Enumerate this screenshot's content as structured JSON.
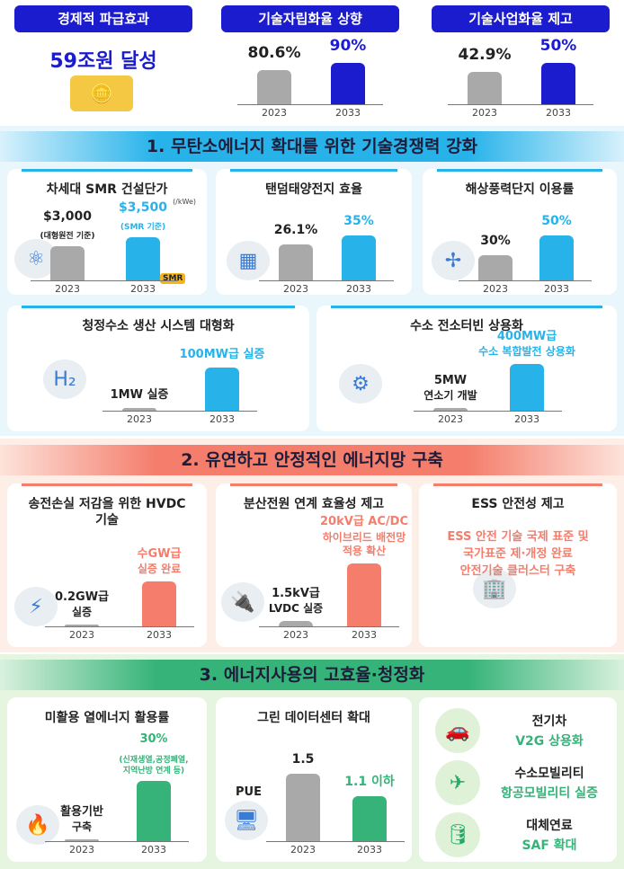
{
  "colors": {
    "top_blue": "#1c1ccf",
    "section1": "#27b3ea",
    "section2": "#f47d6c",
    "section3": "#35b378",
    "gray_bar": "#a9a9a9"
  },
  "top": [
    {
      "title": "경제적 파급효과",
      "headline": "59조원 달성",
      "icon": "gold-coins-icon"
    },
    {
      "title": "기술자립화율 상향",
      "bars": [
        {
          "year": "2023",
          "label": [
            "80.6%"
          ],
          "value": 80.6
        },
        {
          "year": "2033",
          "label": [
            "90%"
          ],
          "value": 90
        }
      ]
    },
    {
      "title": "기술사업화율 제고",
      "bars": [
        {
          "year": "2023",
          "label": [
            "42.9%"
          ],
          "value": 42.9
        },
        {
          "year": "2033",
          "label": [
            "50%"
          ],
          "value": 50
        }
      ]
    }
  ],
  "section1": {
    "title": "1. 무탄소에너지 확대를 위한 기술경쟁력 강화",
    "cards": [
      {
        "title": "차세대 SMR 건설단가",
        "unit": "(/kWe)",
        "icon": "nuclear-plant-icon",
        "badge": "SMR",
        "bars": [
          {
            "year": "2023",
            "label": [
              "$3,000",
              "(대형원전 기준)"
            ],
            "value": 3000
          },
          {
            "year": "2033",
            "label": [
              "$3,500",
              "(SMR 기준)"
            ],
            "value": 3500
          }
        ]
      },
      {
        "title": "탠덤태양전지 효율",
        "icon": "solar-panel-icon",
        "bars": [
          {
            "year": "2023",
            "label": [
              "26.1%"
            ],
            "value": 26.1
          },
          {
            "year": "2033",
            "label": [
              "35%"
            ],
            "value": 35
          }
        ]
      },
      {
        "title": "해상풍력단지 이용률",
        "icon": "wind-turbine-icon",
        "bars": [
          {
            "year": "2023",
            "label": [
              "30%"
            ],
            "value": 30
          },
          {
            "year": "2033",
            "label": [
              "50%"
            ],
            "value": 50
          }
        ]
      },
      {
        "title": "청정수소 생산 시스템 대형화",
        "icon": "hydrogen-tank-icon",
        "bars": [
          {
            "year": "2023",
            "label": [
              "1MW 실증"
            ]
          },
          {
            "year": "2033",
            "label": [
              "100MW급 실증"
            ]
          }
        ]
      },
      {
        "title": "수소 전소터빈 상용화",
        "icon": "turbine-icon",
        "bars": [
          {
            "year": "2023",
            "label": [
              "5MW",
              "연소기 개발"
            ]
          },
          {
            "year": "2033",
            "label": [
              "400MW급",
              "수소 복합발전 상용화"
            ]
          }
        ]
      }
    ]
  },
  "section2": {
    "title": "2. 유연하고 안정적인 에너지망 구축",
    "cards": [
      {
        "title": "송전손실 저감을 위한 HVDC 기술",
        "icon": "lightning-icon",
        "bars": [
          {
            "year": "2023",
            "label": [
              "0.2GW급",
              "실증"
            ]
          },
          {
            "year": "2033",
            "label": [
              "수GW급",
              "실증 완료"
            ]
          }
        ]
      },
      {
        "title": "분산전원 연계 효율성 제고",
        "icon": "plug-leaf-icon",
        "bars": [
          {
            "year": "2023",
            "label": [
              "1.5kV급",
              "LVDC 실증"
            ]
          },
          {
            "year": "2033",
            "label": [
              "20kV급 AC/DC",
              "하이브리드 배전망",
              "적용 확산"
            ]
          }
        ]
      },
      {
        "title": "ESS 안전성 제고",
        "icon": "ess-building-icon",
        "text": [
          "ESS 안전 기술 국제 표준 및",
          "국가표준 제·개정 완료",
          "안전기술 클러스터 구축"
        ]
      }
    ]
  },
  "section3": {
    "title": "3. 에너지사용의 고효율·청정화",
    "cards": [
      {
        "title": "미활용 열에너지 활용률",
        "icon": "heat-plug-icon",
        "bars": [
          {
            "year": "2023",
            "label": [
              "활용기반",
              "구축"
            ]
          },
          {
            "year": "2033",
            "label": [
              "30%",
              "(신재생열,공정폐열,",
              "지역난방 연계 등)"
            ],
            "value": 30
          }
        ]
      },
      {
        "title": "그린 데이터센터 확대",
        "axis_label": "PUE",
        "icon": "data-center-icon",
        "bars": [
          {
            "year": "2023",
            "label": [
              "1.5"
            ],
            "value": 1.5
          },
          {
            "year": "2033",
            "label": [
              "1.1 이하"
            ],
            "value": 1.1
          }
        ]
      },
      {
        "items": [
          {
            "title": "전기차",
            "desc": "V2G 상용화",
            "icon": "electric-car-icon"
          },
          {
            "title": "수소모빌리티",
            "desc": "항공모빌리티 실증",
            "icon": "air-mobility-icon"
          },
          {
            "title": "대체연료",
            "desc": "SAF 확대",
            "icon": "fuel-barrel-icon"
          }
        ]
      }
    ]
  }
}
